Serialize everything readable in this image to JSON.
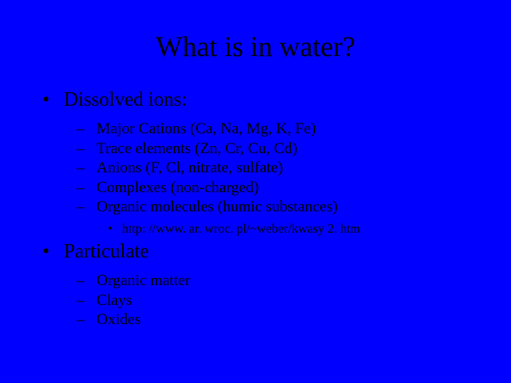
{
  "background_color": "#0000ff",
  "text_color": "#000000",
  "font_family": "Times New Roman",
  "title": "What is in water?",
  "title_fontsize": 40,
  "lvl1_fontsize": 28,
  "lvl2_fontsize": 22,
  "lvl3_fontsize": 18,
  "section1": {
    "label": "Dissolved ions:",
    "items": [
      "Major Cations (Ca, Na, Mg, K, Fe)",
      "Trace elements (Zn, Cr, Cu, Cd)",
      "Anions (F, Cl, nitrate, sulfate)",
      "Complexes (non-charged)",
      "Organic molecules (humic substances)"
    ],
    "note": "http: //www. ar. wroc. pl/~weber/kwasy 2. htm"
  },
  "section2": {
    "label": "Particulate",
    "items": [
      "Organic matter",
      "Clays",
      "Oxides"
    ]
  }
}
